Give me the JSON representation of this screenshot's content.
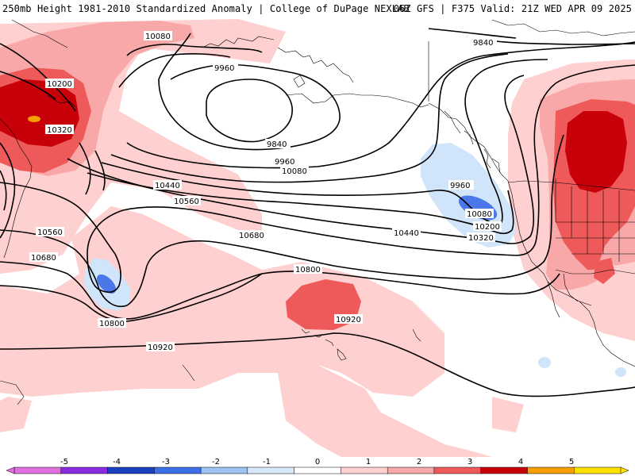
{
  "header": {
    "left": "250mb Height 1981-2010 Standardized Anomaly | College of DuPage NEXLAB",
    "right": "06Z GFS | F375 Valid: 21Z WED APR 09 2025"
  },
  "legend": {
    "ticks": [
      "-5",
      "-4",
      "-3",
      "-2",
      "-1",
      "0",
      "1",
      "2",
      "3",
      "4",
      "5"
    ],
    "colors": [
      "#e070e0",
      "#8a2be2",
      "#1a3fbf",
      "#3c6fe8",
      "#9ec3f2",
      "#d8e8f8",
      "#ffffff",
      "#ffd0d0",
      "#f8a8a8",
      "#ee5a5a",
      "#c8000a",
      "#f5a000",
      "#ffe000"
    ]
  },
  "contour_labels": [
    "10080",
    "9840",
    "9960",
    "9840",
    "9960",
    "10080",
    "10200",
    "10320",
    "10440",
    "10560",
    "10560",
    "10680",
    "10680",
    "10800",
    "10800",
    "10920",
    "10920",
    "9960",
    "10080",
    "10200",
    "10320",
    "10440"
  ],
  "anomaly_colors": {
    "pos1": "#ffd0d0",
    "pos2": "#f8a8a8",
    "pos3": "#ee5a5a",
    "pos4": "#c8000a",
    "pos5": "#f5a000",
    "neg1": "#d0e4fa",
    "neg2": "#4a78e8"
  }
}
